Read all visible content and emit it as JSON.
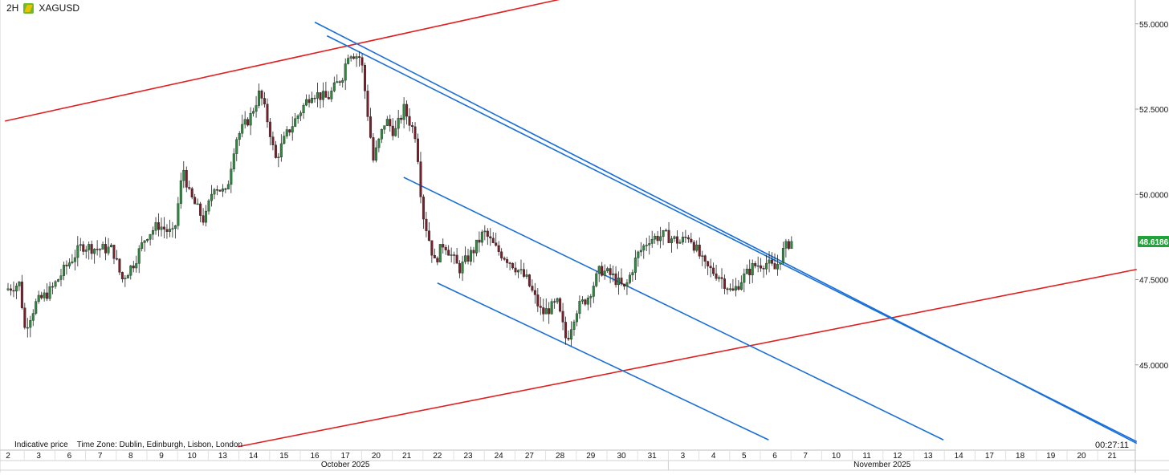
{
  "header": {
    "timeframe": "2H",
    "symbol": "XAGUSD"
  },
  "footer": {
    "indicative": "Indicative price",
    "timezone": "Time Zone: Dublin, Edinburgh, Lisbon, London",
    "countdown": "00:27:11"
  },
  "colors": {
    "up": "#2e8b3e",
    "down": "#7a1f2a",
    "trend_red": "#e02020",
    "channel_blue": "#1a6fd8",
    "price_tag": "#22a33a",
    "grid": "#e6e6e6"
  },
  "icons": {
    "symbol": "silver-flag-icon"
  },
  "chart_data": {
    "type": "candlestick",
    "title": "XAGUSD",
    "timeframe": "2H",
    "ylim": [
      42.5,
      55.7
    ],
    "y_ticks": [
      "55.0000",
      "52.5000",
      "50.0000",
      "47.5000",
      "45.0000"
    ],
    "y_tick_values": [
      55,
      52.5,
      50,
      47.5,
      45
    ],
    "current_price": "48.6186",
    "x_ticks": [
      "2",
      "3",
      "6",
      "7",
      "8",
      "9",
      "10",
      "13",
      "14",
      "15",
      "16",
      "17",
      "20",
      "21",
      "22",
      "23",
      "24",
      "27",
      "28",
      "29",
      "30",
      "31",
      "3",
      "4",
      "5",
      "6",
      "7",
      "10",
      "11",
      "12",
      "13",
      "14",
      "17",
      "18",
      "19",
      "20",
      "21"
    ],
    "x_tick_index": [
      0,
      1,
      2,
      3,
      4,
      5,
      6,
      7,
      8,
      9,
      10,
      11,
      12,
      13,
      14,
      15,
      16,
      17,
      18,
      19,
      20,
      21,
      22,
      23,
      24,
      25,
      26,
      27,
      28,
      29,
      30,
      31,
      32,
      33,
      34,
      35,
      36
    ],
    "month_labels": [
      {
        "label": "October 2025",
        "at": 11
      },
      {
        "label": "November 2025",
        "at": 28.5
      }
    ],
    "candles_per_day": 11,
    "price_path": [
      [
        0,
        47.2
      ],
      [
        0.5,
        47.4
      ],
      [
        0.6,
        46.0
      ],
      [
        1.0,
        46.8
      ],
      [
        1.5,
        47.2
      ],
      [
        2.0,
        47.9
      ],
      [
        2.5,
        48.5
      ],
      [
        3.0,
        48.4
      ],
      [
        3.5,
        48.4
      ],
      [
        3.8,
        47.5
      ],
      [
        4.2,
        48.0
      ],
      [
        4.6,
        48.8
      ],
      [
        5.0,
        49.1
      ],
      [
        5.5,
        48.8
      ],
      [
        5.8,
        50.8
      ],
      [
        6.0,
        50.0
      ],
      [
        6.5,
        49.2
      ],
      [
        6.8,
        50.3
      ],
      [
        7.2,
        50.0
      ],
      [
        7.5,
        51.6
      ],
      [
        8.0,
        52.3
      ],
      [
        8.3,
        53.0
      ],
      [
        8.6,
        52.0
      ],
      [
        8.8,
        51.0
      ],
      [
        9.2,
        51.8
      ],
      [
        9.6,
        52.4
      ],
      [
        10.0,
        53.0
      ],
      [
        10.5,
        52.8
      ],
      [
        11.0,
        53.5
      ],
      [
        11.2,
        54.2
      ],
      [
        11.6,
        54.0
      ],
      [
        12.0,
        51.0
      ],
      [
        12.4,
        52.2
      ],
      [
        12.7,
        51.8
      ],
      [
        13.0,
        52.5
      ],
      [
        13.4,
        51.7
      ],
      [
        13.6,
        49.5
      ],
      [
        14.0,
        48.0
      ],
      [
        14.3,
        48.6
      ],
      [
        14.8,
        47.8
      ],
      [
        15.3,
        48.4
      ],
      [
        15.6,
        48.9
      ],
      [
        16.0,
        48.4
      ],
      [
        16.5,
        48.0
      ],
      [
        17.0,
        47.5
      ],
      [
        17.5,
        46.5
      ],
      [
        18.0,
        46.8
      ],
      [
        18.3,
        45.7
      ],
      [
        18.6,
        46.6
      ],
      [
        19.0,
        47.0
      ],
      [
        19.4,
        47.8
      ],
      [
        19.8,
        47.6
      ],
      [
        20.2,
        47.2
      ],
      [
        20.6,
        48.2
      ],
      [
        21.0,
        48.7
      ],
      [
        21.5,
        48.8
      ],
      [
        22.0,
        48.6
      ],
      [
        22.3,
        48.8
      ],
      [
        22.8,
        47.9
      ],
      [
        23.3,
        47.6
      ],
      [
        23.7,
        47.1
      ],
      [
        24.0,
        47.5
      ],
      [
        24.4,
        47.9
      ],
      [
        24.8,
        48.0
      ],
      [
        25.1,
        47.8
      ],
      [
        25.4,
        48.4
      ],
      [
        25.6,
        48.62
      ]
    ],
    "trendlines": [
      {
        "color": "red",
        "from": [
          -0.1,
          52.15
        ],
        "to": [
          18.4,
          55.8
        ]
      },
      {
        "color": "red",
        "from": [
          7.5,
          42.6
        ],
        "to": [
          36.8,
          47.8
        ]
      },
      {
        "color": "blue",
        "from": [
          10.0,
          55.05
        ],
        "to": [
          36.8,
          42.7
        ]
      },
      {
        "color": "blue",
        "from": [
          10.4,
          54.65
        ],
        "to": [
          36.8,
          42.75
        ]
      },
      {
        "color": "blue",
        "from": [
          12.9,
          50.5
        ],
        "to": [
          30.5,
          42.8
        ]
      },
      {
        "color": "blue",
        "from": [
          14.0,
          47.4
        ],
        "to": [
          24.8,
          42.8
        ]
      }
    ]
  }
}
